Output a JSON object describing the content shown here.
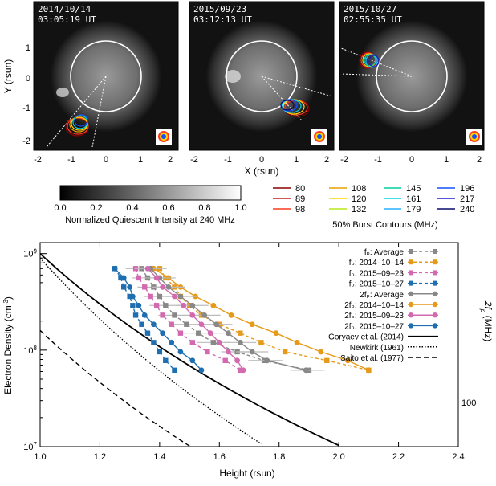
{
  "top": {
    "panels": [
      {
        "date": "2014/10/14",
        "time": "03:05:19 UT"
      },
      {
        "date": "2015/09/23",
        "time": "03:12:13 UT"
      },
      {
        "date": "2015/10/27",
        "time": "02:55:35 UT"
      }
    ],
    "ylabel": "Y (rsun)",
    "xlabel": "X (rsun)",
    "xticks": [
      "-2",
      "-1",
      "0",
      "1",
      "2"
    ],
    "yticks": [
      "1",
      "0",
      "-1",
      "-2"
    ],
    "colorbar_ticks": [
      "0.0",
      "0.2",
      "0.4",
      "0.6",
      "0.8",
      "1.0"
    ],
    "colorbar_label": "Normalized Quiescent Intensity at 240 MHz",
    "contour_label": "50% Burst Contours (MHz)",
    "freq_legend": [
      {
        "v": "80",
        "c": "#8b0000"
      },
      {
        "v": "89",
        "c": "#c81e1e"
      },
      {
        "v": "98",
        "c": "#ff3b1f"
      },
      {
        "v": "108",
        "c": "#e8a000"
      },
      {
        "v": "120",
        "c": "#ffd400"
      },
      {
        "v": "132",
        "c": "#b9e81a"
      },
      {
        "v": "145",
        "c": "#00d1a0"
      },
      {
        "v": "161",
        "c": "#00d8e0"
      },
      {
        "v": "179",
        "c": "#28b4ff"
      },
      {
        "v": "196",
        "c": "#1450ff"
      },
      {
        "v": "217",
        "c": "#1e1ec8"
      },
      {
        "v": "240",
        "c": "#0a0a6e"
      }
    ]
  },
  "chart_data": {
    "type": "scatter",
    "xlabel": "Height (rsun)",
    "ylabel": "Electron Density (cm",
    "ylabel_sup": "-3",
    "ylabel_end": ")",
    "right_axis_label": "2f",
    "right_axis_sub": "p",
    "right_axis_unit": " (MHz)",
    "right_tick": "100",
    "xlim": [
      1.0,
      2.4
    ],
    "ylim": [
      10000000,
      1300000000
    ],
    "yscale": "log",
    "xticks": [
      "1.0",
      "1.2",
      "1.4",
      "1.6",
      "1.8",
      "2.0",
      "2.2",
      "2.4"
    ],
    "yticks": [
      {
        "base": "10",
        "exp": "7"
      },
      {
        "base": "10",
        "exp": "8"
      },
      {
        "base": "10",
        "exp": "9"
      }
    ],
    "legend": [
      {
        "label": "fₚ: Average",
        "color": "#888888",
        "marker": "square",
        "dash": true
      },
      {
        "label": "fₚ: 2014–10–14",
        "color": "#e69a1a",
        "marker": "square",
        "dash": true
      },
      {
        "label": "fₚ: 2015–09–23",
        "color": "#d36ab0",
        "marker": "square",
        "dash": true
      },
      {
        "label": "fₚ: 2015–10–27",
        "color": "#1f6fb0",
        "marker": "square",
        "dash": true
      },
      {
        "label": "2fₚ: Average",
        "color": "#888888",
        "marker": "circle",
        "dash": false
      },
      {
        "label": "2fₚ: 2014–10–14",
        "color": "#e69a1a",
        "marker": "circle",
        "dash": false
      },
      {
        "label": "2fₚ: 2015–09–23",
        "color": "#d36ab0",
        "marker": "circle",
        "dash": false
      },
      {
        "label": "2fₚ: 2015–10–27",
        "color": "#1f6fb0",
        "marker": "circle",
        "dash": false
      },
      {
        "label": "Goryaev et al. (2014)",
        "color": "#000000",
        "marker": "none",
        "style": "solid"
      },
      {
        "label": "Newkirk (1961)",
        "color": "#000000",
        "marker": "none",
        "style": "dotted"
      },
      {
        "label": "Saito et al. (1977)",
        "color": "#000000",
        "marker": "none",
        "style": "dashed"
      }
    ],
    "density": [
      700000000,
      560000000,
      450000000,
      360000000,
      290000000,
      230000000,
      185000000,
      150000000,
      120000000,
      96000000,
      78000000,
      62000000
    ],
    "series": [
      {
        "name": "fₚ: 2014–10–14",
        "color": "#e69a1a",
        "marker": "square",
        "dash": true,
        "x": [
          1.4,
          1.42,
          1.45,
          1.47,
          1.5,
          1.54,
          1.6,
          1.67,
          1.74,
          1.82,
          1.96,
          2.1
        ]
      },
      {
        "name": "fₚ: Average",
        "color": "#888888",
        "marker": "square",
        "dash": true,
        "x": [
          1.34,
          1.36,
          1.38,
          1.4,
          1.42,
          1.45,
          1.49,
          1.53,
          1.58,
          1.66,
          1.75,
          1.9
        ]
      },
      {
        "name": "fₚ: 2015–09–23",
        "color": "#d36ab0",
        "marker": "square",
        "dash": true,
        "x": [
          1.32,
          1.33,
          1.35,
          1.37,
          1.39,
          1.41,
          1.44,
          1.47,
          1.51,
          1.56,
          1.62,
          1.67
        ]
      },
      {
        "name": "fₚ: 2015–10–27",
        "color": "#1f6fb0",
        "marker": "square",
        "dash": true,
        "x": [
          1.25,
          1.27,
          1.28,
          1.3,
          1.31,
          1.32,
          1.34,
          1.36,
          1.38,
          1.4,
          1.42,
          1.45
        ]
      },
      {
        "name": "2fₚ: 2014–10–14",
        "color": "#e69a1a",
        "marker": "circle",
        "dash": false,
        "x": [
          1.38,
          1.43,
          1.47,
          1.52,
          1.58,
          1.64,
          1.71,
          1.79,
          1.86,
          1.94,
          2.03,
          2.1
        ]
      },
      {
        "name": "2fₚ: Average",
        "color": "#888888",
        "marker": "circle",
        "dash": false,
        "x": [
          1.37,
          1.4,
          1.43,
          1.47,
          1.51,
          1.55,
          1.59,
          1.63,
          1.67,
          1.71,
          1.76,
          1.89
        ]
      },
      {
        "name": "2fₚ: 2015–09–23",
        "color": "#d36ab0",
        "marker": "circle",
        "dash": false,
        "x": [
          1.36,
          1.39,
          1.41,
          1.45,
          1.48,
          1.51,
          1.54,
          1.57,
          1.6,
          1.63,
          1.66,
          1.68
        ]
      },
      {
        "name": "2fₚ: 2015–10–27",
        "color": "#1f6fb0",
        "marker": "circle",
        "dash": false,
        "x": [
          1.25,
          1.28,
          1.3,
          1.31,
          1.33,
          1.35,
          1.38,
          1.41,
          1.44,
          1.47,
          1.51,
          1.54
        ]
      }
    ]
  }
}
